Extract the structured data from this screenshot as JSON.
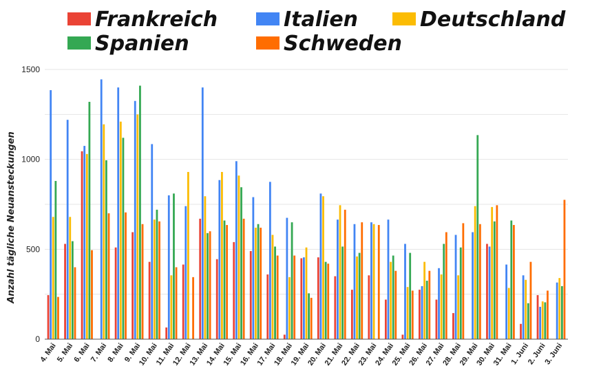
{
  "chart_data": {
    "type": "bar",
    "title": "",
    "xlabel": "",
    "ylabel": "Anzahl tägliche Neuansteckungen",
    "ylim": [
      0,
      1500
    ],
    "yticks": [
      0,
      500,
      1000,
      1500
    ],
    "grid": true,
    "legend_position": "top",
    "categories": [
      "4. Mai",
      "5. Mai",
      "6. Mai",
      "7. Mai",
      "8. Mai",
      "9. Mai",
      "10. Mai",
      "11. Mai",
      "12. Mai",
      "13. Mai",
      "14. Mai",
      "15. Mai",
      "16. Mai",
      "17. Mai",
      "18. Mai",
      "19. Mai",
      "20. Mai",
      "21. Mai",
      "22. Mai",
      "23. Mai",
      "24. Mai",
      "25. Mai",
      "26. Mai",
      "27. Mai",
      "28. Mai",
      "29. Mai",
      "30. Mai",
      "31. Mai",
      "1. Juni",
      "2. Juni",
      "3. Juni"
    ],
    "series": [
      {
        "name": "Frankreich",
        "color": "#ea4335",
        "values": [
          245,
          530,
          1045,
          0,
          510,
          595,
          430,
          65,
          415,
          670,
          445,
          540,
          490,
          360,
          25,
          450,
          455,
          350,
          275,
          355,
          220,
          25,
          275,
          220,
          145,
          0,
          530,
          0,
          85,
          245,
          0
        ]
      },
      {
        "name": "Italien",
        "color": "#4285f4",
        "values": [
          1385,
          1220,
          1075,
          1445,
          1400,
          1325,
          1085,
          800,
          740,
          1400,
          885,
          990,
          790,
          875,
          675,
          455,
          810,
          665,
          640,
          650,
          665,
          530,
          295,
          395,
          580,
          595,
          515,
          415,
          355,
          180,
          315
        ]
      },
      {
        "name": "Deutschland",
        "color": "#fbbc04",
        "values": [
          680,
          680,
          1030,
          1195,
          1210,
          1250,
          665,
          355,
          930,
          795,
          930,
          910,
          620,
          580,
          345,
          510,
          795,
          745,
          460,
          640,
          430,
          290,
          430,
          360,
          355,
          740,
          735,
          285,
          330,
          210,
          340
        ]
      },
      {
        "name": "Spanien",
        "color": "#34a853",
        "values": [
          880,
          545,
          1320,
          995,
          1120,
          1410,
          720,
          810,
          0,
          590,
          660,
          845,
          640,
          515,
          650,
          255,
          430,
          515,
          480,
          0,
          465,
          480,
          325,
          530,
          510,
          1135,
          655,
          660,
          200,
          205,
          295
        ]
      },
      {
        "name": "Schweden",
        "color": "#ff6d01",
        "values": [
          235,
          400,
          495,
          700,
          705,
          640,
          655,
          400,
          345,
          600,
          635,
          670,
          620,
          465,
          465,
          230,
          420,
          720,
          650,
          635,
          380,
          270,
          380,
          595,
          645,
          640,
          745,
          635,
          430,
          270,
          775
        ]
      }
    ]
  }
}
